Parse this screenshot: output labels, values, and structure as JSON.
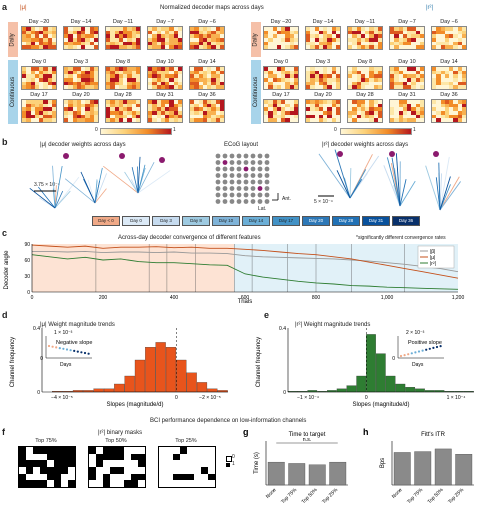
{
  "panel_a": {
    "label": "a",
    "title": "Normalized decoder maps across days",
    "left_header": "|μ|",
    "right_header": "|r²|",
    "daily_label": "Daily",
    "continuous_label": "Continuous",
    "rows": [
      [
        "Day −20",
        "Day −14",
        "Day −11",
        "Day −7",
        "Day −6"
      ],
      [
        "Day 0",
        "Day 3",
        "Day 8",
        "Day 10",
        "Day 14"
      ],
      [
        "Day 17",
        "Day 20",
        "Day 28",
        "Day 31",
        "Day 36"
      ]
    ],
    "colorbar_min": "0",
    "colorbar_max": "1"
  },
  "panel_b": {
    "label": "b",
    "left_title": "|μ| decoder weights across days",
    "center_title": "ECoG layout",
    "right_title": "|r²| decoder weights across days",
    "left_scale": "3.75 × 10⁻⁴",
    "right_scale": "5 × 10⁻⁴",
    "ant": "Ant.",
    "lat": "Lat.",
    "legend": [
      "Day < 0",
      "Day 0",
      "Day 3",
      "Day 8",
      "Day 10",
      "Day 14",
      "Day 17",
      "Day 20",
      "Day 28",
      "Day 31",
      "Day 36"
    ],
    "legend_colors": [
      "#f0a987",
      "#dbe9f6",
      "#c6dbef",
      "#9ecae1",
      "#7fb3d8",
      "#6baed6",
      "#4292c6",
      "#2d78b7",
      "#2171b5",
      "#08519c",
      "#08306b"
    ]
  },
  "panel_c": {
    "label": "c",
    "title": "Across-day decoder convergence of different features",
    "note": "*significantly different convergence rates",
    "ylabel": "Decoder angle",
    "xlabel": "Trials",
    "legend": [
      "|β|",
      "|μ|",
      "|r²|"
    ],
    "legend_colors": [
      "#999999",
      "#c4501b",
      "#2e7d32"
    ]
  },
  "panel_d": {
    "label": "d",
    "title": "|μ| Weight magnitude trends",
    "ylabel": "Channel frequency",
    "xlabel": "Slopes (magnitude/d)",
    "inset_scale": "1 × 10⁻³",
    "inset_label": "Negative slope",
    "inset_xlabel": "Days",
    "inset_zero": "0",
    "ytick_top": "0.4",
    "ytick_zero": "0",
    "xticks": [
      "−4 × 10⁻⁵",
      "0",
      "−2 × 10⁻⁵"
    ]
  },
  "panel_e": {
    "label": "e",
    "title": "|r²| Weight magnitude trends",
    "ylabel": "Channel frequency",
    "xlabel": "Slopes (magnitude/d)",
    "inset_scale": "2 × 10⁻³",
    "inset_label": "Positive slope",
    "inset_xlabel": "Days",
    "inset_zero": "0",
    "ytick_top": "0.4",
    "ytick_zero": "0",
    "xticks": [
      "−1 × 10⁻⁴",
      "0",
      "1 × 10⁻⁴"
    ]
  },
  "bottom_title": "BCI performance dependence on low-information channels",
  "panel_f": {
    "label": "f",
    "title": "|r²| binary masks",
    "masks": [
      "Top 75%",
      "Top 50%",
      "Top 25%"
    ],
    "legend": [
      "0",
      "1"
    ]
  },
  "chart_data": [
    {
      "type": "line",
      "title": "Across-day decoder convergence of different features",
      "xlabel": "Trials",
      "ylabel": "Decoder angle",
      "xlim": [
        0,
        1200
      ],
      "ylim": [
        0,
        90
      ],
      "xticks": [
        "0",
        "200",
        "400",
        "600",
        "800",
        "1,000",
        "1,200"
      ],
      "yticks": [
        "0",
        "30",
        "60",
        "90"
      ],
      "x": [
        0,
        50,
        100,
        150,
        200,
        250,
        300,
        350,
        400,
        450,
        500,
        550,
        600,
        650,
        700,
        750,
        800,
        850,
        900,
        950,
        1000,
        1050,
        1100,
        1150,
        1200
      ],
      "series": [
        {
          "name": "|β|",
          "values": [
            76,
            76,
            75,
            76,
            74,
            75,
            75,
            74,
            75,
            73,
            73,
            72,
            68,
            66,
            65,
            64,
            63,
            62,
            60,
            58,
            55,
            52,
            48,
            44,
            38
          ]
        },
        {
          "name": "|μ|",
          "values": [
            88,
            86,
            84,
            86,
            82,
            84,
            84,
            85,
            83,
            84,
            82,
            82,
            80,
            78,
            75,
            72,
            70,
            66,
            62,
            56,
            50,
            44,
            38,
            32,
            26
          ]
        },
        {
          "name": "|r²|",
          "values": [
            70,
            66,
            62,
            65,
            60,
            62,
            57,
            55,
            55,
            53,
            51,
            50,
            34,
            28,
            24,
            20,
            17,
            15,
            12,
            11,
            9,
            8,
            7,
            6,
            5
          ]
        }
      ]
    },
    {
      "type": "bar",
      "title": "|μ| Weight magnitude trends",
      "xlabel": "Slopes (magnitude/d)",
      "ylabel": "Channel frequency",
      "ylim": [
        0,
        0.4
      ],
      "values": [
        0.0,
        0.005,
        0.005,
        0.01,
        0.01,
        0.02,
        0.02,
        0.05,
        0.1,
        0.2,
        0.28,
        0.31,
        0.28,
        0.2,
        0.12,
        0.06,
        0.02,
        0.01
      ]
    },
    {
      "type": "bar",
      "title": "|r²| Weight magnitude trends",
      "xlabel": "Slopes (magnitude/d)",
      "ylabel": "Channel frequency",
      "ylim": [
        0,
        0.4
      ],
      "values": [
        0.005,
        0.005,
        0.01,
        0.005,
        0.01,
        0.02,
        0.04,
        0.1,
        0.36,
        0.24,
        0.1,
        0.05,
        0.03,
        0.02,
        0.01,
        0.01,
        0.005,
        0.005,
        0.005
      ]
    },
    {
      "type": "bar",
      "title": "Time to target",
      "ylabel": "Time (s)",
      "categories": [
        "None",
        "Top 75%",
        "Top 50%",
        "Top 25%"
      ],
      "values": [
        2.6,
        2.45,
        2.3,
        2.6
      ],
      "ylim": [
        0,
        5
      ],
      "annotation": "n.s.",
      "label": "g"
    },
    {
      "type": "bar",
      "title": "Fitt's ITR",
      "ylabel": "Bps",
      "categories": [
        "None",
        "Top 75%",
        "Top 50%",
        "Top 25%"
      ],
      "values": [
        0.37,
        0.38,
        0.41,
        0.35
      ],
      "ylim": [
        0,
        0.5
      ],
      "label": "h"
    }
  ]
}
